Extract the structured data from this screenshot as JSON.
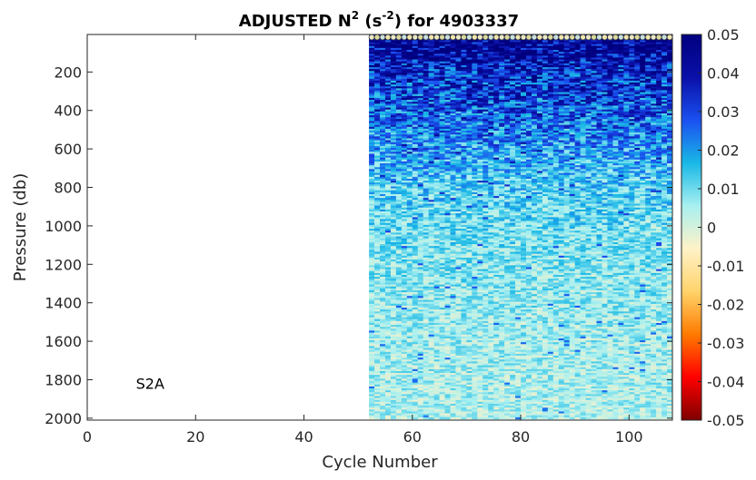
{
  "chart_data": {
    "type": "heatmap",
    "title": {
      "prefix": "ADJUSTED N",
      "sup1": "2",
      "mid": " (s",
      "sup2": "-2",
      "suffix": ") for 4903337"
    },
    "xlabel": "Cycle Number",
    "ylabel": "Pressure (db)",
    "xlim": [
      0,
      108
    ],
    "ylim": [
      2010,
      5
    ],
    "y_reversed": true,
    "x_ticks": [
      "0",
      "20",
      "40",
      "60",
      "80",
      "100"
    ],
    "x_tick_values": [
      0,
      20,
      40,
      60,
      80,
      100
    ],
    "y_ticks": [
      "200",
      "400",
      "600",
      "800",
      "1000",
      "1200",
      "1400",
      "1600",
      "1800",
      "2000"
    ],
    "y_tick_values": [
      200,
      400,
      600,
      800,
      1000,
      1200,
      1400,
      1600,
      1800,
      2000
    ],
    "data_cycle_range": [
      52,
      108
    ],
    "colorbar": {
      "clim": [
        -0.05,
        0.05
      ],
      "ticks": [
        "0.05",
        "0.04",
        "0.03",
        "0.02",
        "0.01",
        "0",
        "-0.01",
        "-0.02",
        "-0.03",
        "-0.04",
        "-0.05"
      ],
      "tick_values": [
        0.05,
        0.04,
        0.03,
        0.02,
        0.01,
        0,
        -0.01,
        -0.02,
        -0.03,
        -0.04,
        -0.05
      ],
      "colors": [
        "#7f0000",
        "#ff0000",
        "#ff7a00",
        "#ffd36a",
        "#fff2c8",
        "#a8f0f0",
        "#19b8e6",
        "#1a50f0",
        "#0a10a8",
        "#00007f"
      ]
    },
    "profile_depth_profile": [
      {
        "pressure": 10,
        "n2_mean": 0.05
      },
      {
        "pressure": 100,
        "n2_mean": 0.045
      },
      {
        "pressure": 200,
        "n2_mean": 0.035
      },
      {
        "pressure": 400,
        "n2_mean": 0.027
      },
      {
        "pressure": 600,
        "n2_mean": 0.02
      },
      {
        "pressure": 800,
        "n2_mean": 0.013
      },
      {
        "pressure": 1000,
        "n2_mean": 0.01
      },
      {
        "pressure": 1200,
        "n2_mean": 0.008
      },
      {
        "pressure": 1500,
        "n2_mean": 0.006
      },
      {
        "pressure": 1800,
        "n2_mean": 0.005
      },
      {
        "pressure": 2000,
        "n2_mean": 0.004
      }
    ],
    "annotations": [
      {
        "text": "S2A",
        "x": 10,
        "y": 1820
      }
    ]
  }
}
